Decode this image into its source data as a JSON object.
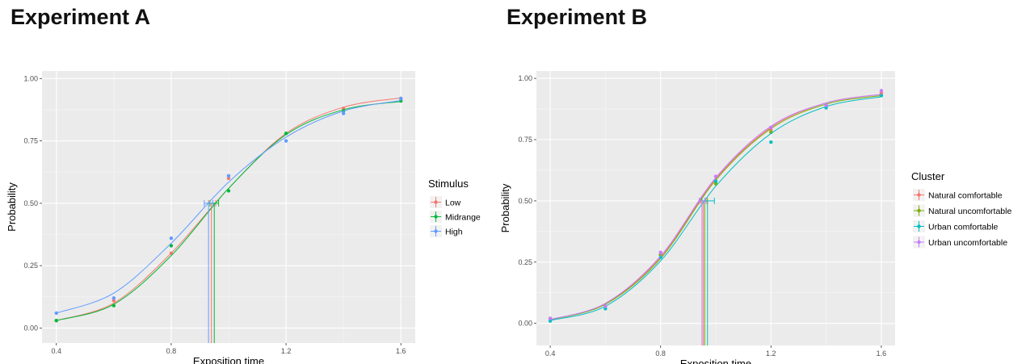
{
  "chart_data": [
    {
      "type": "line",
      "title": "Experiment A",
      "xlabel": "Exposition time",
      "ylabel": "Probability",
      "xlim": [
        0.35,
        1.65
      ],
      "ylim": [
        -0.06,
        1.03
      ],
      "xticks": [
        0.4,
        0.8,
        1.2,
        1.6
      ],
      "xtick_labels": [
        "0.4",
        "0.8",
        "1.2",
        "1.6"
      ],
      "yticks": [
        0,
        0.25,
        0.5,
        0.75,
        1.0
      ],
      "ytick_labels": [
        "0.00",
        "0.25",
        "0.50",
        "0.75",
        "1.00"
      ],
      "grid": true,
      "legend": {
        "title": "Stimulus",
        "position": "right"
      },
      "series": [
        {
          "name": "Low",
          "color": "#f8766d",
          "x": [
            0.4,
            0.6,
            0.8,
            1.0,
            1.2,
            1.4,
            1.6
          ],
          "points": [
            0.03,
            0.11,
            0.3,
            0.6,
            0.78,
            0.88,
            0.92
          ],
          "fit": [
            0.03,
            0.1,
            0.3,
            0.56,
            0.78,
            0.885,
            0.922
          ],
          "threshold": 0.94,
          "threshold_ci": [
            0.93,
            0.955
          ]
        },
        {
          "name": "Midrange",
          "color": "#00ba38",
          "x": [
            0.4,
            0.6,
            0.8,
            1.0,
            1.2,
            1.4,
            1.6
          ],
          "points": [
            0.03,
            0.09,
            0.33,
            0.55,
            0.78,
            0.87,
            0.91
          ],
          "fit": [
            0.03,
            0.095,
            0.29,
            0.56,
            0.775,
            0.875,
            0.908
          ],
          "threshold": 0.95,
          "threshold_ci": [
            0.935,
            0.965
          ]
        },
        {
          "name": "High",
          "color": "#619cff",
          "x": [
            0.4,
            0.6,
            0.8,
            1.0,
            1.2,
            1.4,
            1.6
          ],
          "points": [
            0.06,
            0.12,
            0.36,
            0.61,
            0.75,
            0.86,
            0.92
          ],
          "fit": [
            0.06,
            0.14,
            0.34,
            0.585,
            0.765,
            0.87,
            0.912
          ],
          "threshold": 0.93,
          "threshold_ci": [
            0.915,
            0.945
          ]
        }
      ]
    },
    {
      "type": "line",
      "title": "Experiment B",
      "xlabel": "Exposition time",
      "ylabel": "Probability",
      "xlim": [
        0.35,
        1.65
      ],
      "ylim": [
        -0.09,
        1.03
      ],
      "xticks": [
        0.4,
        0.8,
        1.2,
        1.6
      ],
      "xtick_labels": [
        "0.4",
        "0.8",
        "1.2",
        "1.6"
      ],
      "yticks": [
        0,
        0.25,
        0.5,
        0.75,
        1.0
      ],
      "ytick_labels": [
        "0.00",
        "0.25",
        "0.50",
        "0.75",
        "1.00"
      ],
      "grid": true,
      "legend": {
        "title": "Cluster",
        "position": "right"
      },
      "series": [
        {
          "name": "Natural comfortable",
          "color": "#f8766d",
          "x": [
            0.4,
            0.6,
            0.8,
            1.0,
            1.2,
            1.4,
            1.6
          ],
          "points": [
            0.02,
            0.07,
            0.28,
            0.58,
            0.79,
            0.89,
            0.94
          ],
          "fit": [
            0.015,
            0.08,
            0.27,
            0.59,
            0.8,
            0.9,
            0.935
          ],
          "threshold": 0.955,
          "threshold_ci": [
            0.945,
            0.965
          ]
        },
        {
          "name": "Natural uncomfortable",
          "color": "#7cae00",
          "x": [
            0.4,
            0.6,
            0.8,
            1.0,
            1.2,
            1.4,
            1.6
          ],
          "points": [
            0.02,
            0.07,
            0.28,
            0.57,
            0.78,
            0.89,
            0.93
          ],
          "fit": [
            0.015,
            0.078,
            0.265,
            0.585,
            0.795,
            0.895,
            0.93
          ],
          "threshold": 0.96,
          "threshold_ci": [
            0.95,
            0.97
          ]
        },
        {
          "name": "Urban comfortable",
          "color": "#00bfc4",
          "x": [
            0.4,
            0.6,
            0.8,
            1.0,
            1.2,
            1.4,
            1.6
          ],
          "points": [
            0.01,
            0.06,
            0.27,
            0.58,
            0.74,
            0.88,
            0.93
          ],
          "fit": [
            0.012,
            0.07,
            0.255,
            0.56,
            0.775,
            0.885,
            0.925
          ],
          "threshold": 0.97,
          "threshold_ci": [
            0.95,
            0.995
          ]
        },
        {
          "name": "Urban uncomfortable",
          "color": "#c77cff",
          "x": [
            0.4,
            0.6,
            0.8,
            1.0,
            1.2,
            1.4,
            1.6
          ],
          "points": [
            0.02,
            0.07,
            0.29,
            0.6,
            0.8,
            0.89,
            0.95
          ],
          "fit": [
            0.016,
            0.082,
            0.275,
            0.595,
            0.805,
            0.9,
            0.935
          ],
          "threshold": 0.95,
          "threshold_ci": [
            0.94,
            0.96
          ]
        }
      ]
    }
  ]
}
